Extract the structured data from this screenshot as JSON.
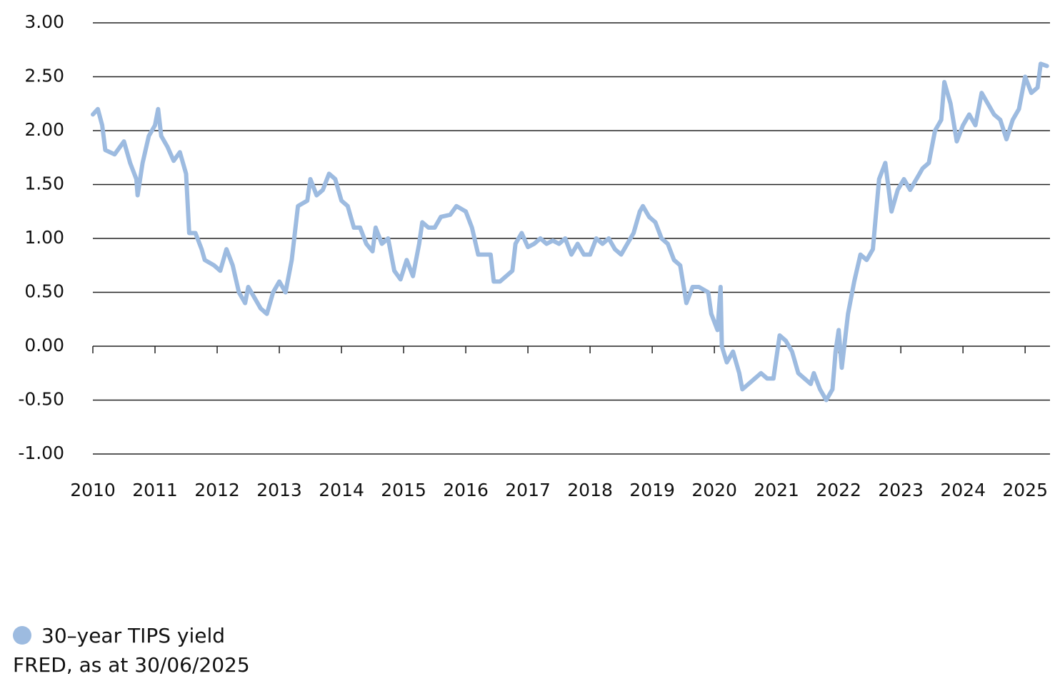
{
  "chart_data": {
    "type": "line",
    "source": "FRED, as at 30/06/2025",
    "x": [
      2010.0,
      2010.08,
      2010.15,
      2010.2,
      2010.35,
      2010.5,
      2010.6,
      2010.7,
      2010.72,
      2010.8,
      2010.9,
      2011.0,
      2011.05,
      2011.1,
      2011.2,
      2011.3,
      2011.4,
      2011.5,
      2011.55,
      2011.65,
      2011.75,
      2011.8,
      2011.95,
      2012.05,
      2012.15,
      2012.25,
      2012.35,
      2012.45,
      2012.5,
      2012.6,
      2012.7,
      2012.8,
      2012.9,
      2013.0,
      2013.1,
      2013.2,
      2013.3,
      2013.45,
      2013.5,
      2013.6,
      2013.7,
      2013.8,
      2013.9,
      2014.0,
      2014.1,
      2014.2,
      2014.3,
      2014.4,
      2014.5,
      2014.55,
      2014.65,
      2014.75,
      2014.85,
      2014.95,
      2015.05,
      2015.15,
      2015.25,
      2015.3,
      2015.4,
      2015.5,
      2015.6,
      2015.75,
      2015.85,
      2016.0,
      2016.1,
      2016.2,
      2016.3,
      2016.4,
      2016.45,
      2016.55,
      2016.65,
      2016.75,
      2016.8,
      2016.9,
      2017.0,
      2017.1,
      2017.2,
      2017.3,
      2017.4,
      2017.5,
      2017.6,
      2017.7,
      2017.8,
      2017.9,
      2018.0,
      2018.1,
      2018.2,
      2018.3,
      2018.4,
      2018.5,
      2018.6,
      2018.7,
      2018.8,
      2018.85,
      2018.95,
      2019.05,
      2019.15,
      2019.25,
      2019.35,
      2019.45,
      2019.55,
      2019.65,
      2019.75,
      2019.9,
      2019.95,
      2020.05,
      2020.1,
      2020.12,
      2020.2,
      2020.3,
      2020.4,
      2020.45,
      2020.55,
      2020.65,
      2020.75,
      2020.85,
      2020.95,
      2021.05,
      2021.15,
      2021.25,
      2021.35,
      2021.45,
      2021.55,
      2021.6,
      2021.7,
      2021.8,
      2021.9,
      2021.95,
      2022.0,
      2022.05,
      2022.15,
      2022.25,
      2022.35,
      2022.45,
      2022.55,
      2022.65,
      2022.75,
      2022.85,
      2022.95,
      2023.05,
      2023.15,
      2023.25,
      2023.35,
      2023.45,
      2023.55,
      2023.65,
      2023.7,
      2023.8,
      2023.9,
      2024.0,
      2024.1,
      2024.2,
      2024.3,
      2024.4,
      2024.5,
      2024.6,
      2024.7,
      2024.8,
      2024.9,
      2025.0,
      2025.1,
      2025.2,
      2025.25,
      2025.35
    ],
    "series": [
      {
        "name": "30–year TIPS yield",
        "color": "#9dbbe0",
        "values": [
          2.15,
          2.2,
          2.05,
          1.82,
          1.78,
          1.9,
          1.7,
          1.55,
          1.4,
          1.7,
          1.95,
          2.05,
          2.2,
          1.95,
          1.85,
          1.72,
          1.8,
          1.6,
          1.05,
          1.05,
          0.9,
          0.8,
          0.75,
          0.7,
          0.9,
          0.75,
          0.5,
          0.4,
          0.55,
          0.45,
          0.35,
          0.3,
          0.5,
          0.6,
          0.5,
          0.8,
          1.3,
          1.35,
          1.55,
          1.4,
          1.45,
          1.6,
          1.55,
          1.35,
          1.3,
          1.1,
          1.1,
          0.95,
          0.88,
          1.1,
          0.95,
          1.0,
          0.7,
          0.62,
          0.8,
          0.65,
          0.95,
          1.15,
          1.1,
          1.1,
          1.2,
          1.22,
          1.3,
          1.25,
          1.1,
          0.85,
          0.85,
          0.85,
          0.6,
          0.6,
          0.65,
          0.7,
          0.95,
          1.05,
          0.92,
          0.95,
          1.0,
          0.95,
          0.98,
          0.95,
          1.0,
          0.85,
          0.95,
          0.85,
          0.85,
          1.0,
          0.95,
          1.0,
          0.9,
          0.85,
          0.95,
          1.05,
          1.25,
          1.3,
          1.2,
          1.15,
          1.0,
          0.95,
          0.8,
          0.75,
          0.4,
          0.55,
          0.55,
          0.5,
          0.3,
          0.15,
          0.55,
          0.0,
          -0.15,
          -0.05,
          -0.25,
          -0.4,
          -0.35,
          -0.3,
          -0.25,
          -0.3,
          -0.3,
          0.1,
          0.05,
          -0.05,
          -0.25,
          -0.3,
          -0.35,
          -0.25,
          -0.4,
          -0.5,
          -0.4,
          -0.05,
          0.15,
          -0.2,
          0.3,
          0.6,
          0.85,
          0.8,
          0.9,
          1.55,
          1.7,
          1.25,
          1.45,
          1.55,
          1.45,
          1.55,
          1.65,
          1.7,
          2.0,
          2.1,
          2.45,
          2.25,
          1.9,
          2.05,
          2.15,
          2.05,
          2.35,
          2.25,
          2.15,
          2.1,
          1.92,
          2.1,
          2.2,
          2.5,
          2.35,
          2.4,
          2.62,
          2.6
        ]
      }
    ],
    "xlim": [
      2010,
      2025.4
    ],
    "xticks": [
      2010,
      2011,
      2012,
      2013,
      2014,
      2015,
      2016,
      2017,
      2018,
      2019,
      2020,
      2021,
      2022,
      2023,
      2024,
      2025
    ],
    "ylim": [
      -1,
      3
    ],
    "yticks": [
      {
        "value": 3,
        "label": "3.00"
      },
      {
        "value": 2.5,
        "label": "2.50"
      },
      {
        "value": 2,
        "label": "2.00"
      },
      {
        "value": 1.5,
        "label": "1.50"
      },
      {
        "value": 1,
        "label": "1.00"
      },
      {
        "value": 0.5,
        "label": "0.50"
      },
      {
        "value": 0,
        "label": "0.00"
      },
      {
        "value": -0.5,
        "label": "-0.50"
      },
      {
        "value": -1,
        "label": "-1.00"
      }
    ],
    "grid": true
  }
}
